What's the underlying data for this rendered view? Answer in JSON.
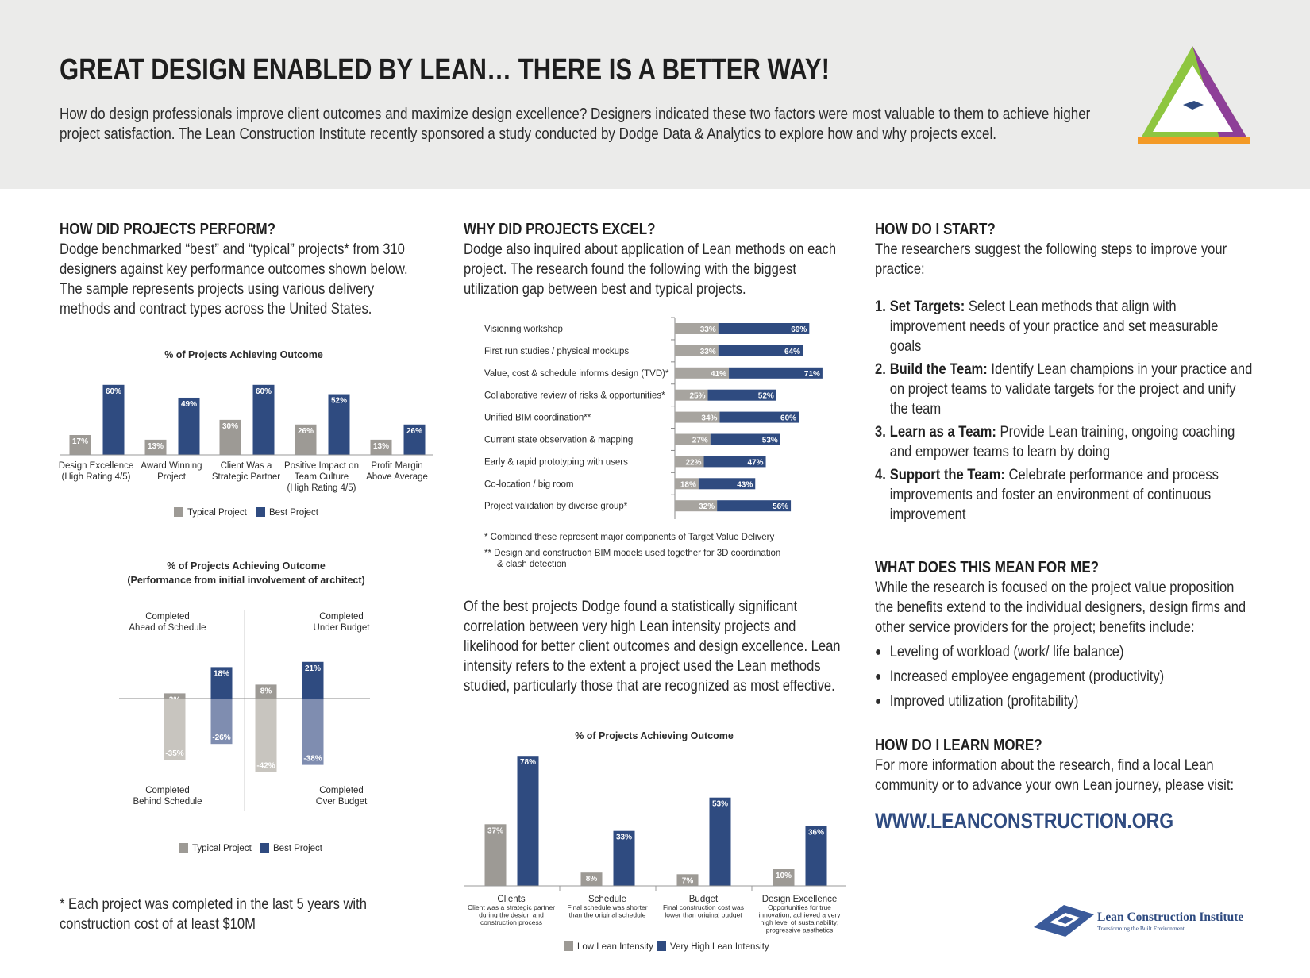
{
  "header": {
    "title": "GREAT DESIGN ENABLED BY LEAN… THERE IS A BETTER WAY!",
    "intro": "How do design professionals improve client outcomes and maximize design excellence? Designers indicated these two factors were most valuable to them to achieve higher project satisfaction. The Lean Construction Institute recently sponsored a study conducted by Dodge Data & Analytics to explore how and why projects excel."
  },
  "logo": {
    "name": "Lean Construction Institute",
    "tagline": "Transforming the Built Environment"
  },
  "perform": {
    "heading": "HOW DID PROJECTS PERFORM?",
    "body": "Dodge benchmarked “best” and “typical” projects* from 310 designers against key performance outcomes shown below. The sample represents projects using various delivery methods and contract types across the United States.",
    "footnote": "* Each project was completed in the last 5 years with construction cost of at least $10M"
  },
  "excel": {
    "heading": "WHY DID PROJECTS EXCEL?",
    "body": "Dodge also inquired about application of Lean methods on each project. The research found the following with the biggest utilization gap between best and typical projects.",
    "footnotes": [
      "*  Combined these represent major components of Target Value Delivery",
      "** Design and construction BIM models used together for 3D coordination",
      "& clash detection"
    ],
    "body2": "Of the best projects Dodge found a statistically significant correlation between very high Lean intensity projects and likelihood for better client outcomes and design excellence. Lean intensity refers to the extent a project used the Lean methods studied, particularly those that are recognized as most effective."
  },
  "start": {
    "heading": "HOW DO I START?",
    "body": "The researchers suggest the following steps to improve your practice:",
    "steps": [
      {
        "number": "1.",
        "lead": "Set Targets:",
        "text": "Select Lean methods that align with improvement needs of your practice and set measurable goals"
      },
      {
        "number": "2.",
        "lead": "Build the Team:",
        "text": "Identify Lean champions in your practice and on project teams to validate targets for the project and unify the team"
      },
      {
        "number": "3.",
        "lead": "Learn as a Team:",
        "text": "Provide Lean training, ongoing coaching and empower teams to learn by doing"
      },
      {
        "number": "4.",
        "lead": "Support the Team:",
        "text": "Celebrate performance and process improvements and foster an environment of continuous improvement"
      }
    ]
  },
  "meaning": {
    "heading": "WHAT DOES THIS MEAN FOR ME?",
    "body": "While the research is focused on the project value proposition the benefits extend to the individual designers, design firms and other service providers for the project; benefits include:",
    "bullets": [
      "Leveling of workload (work/ life balance)",
      "Increased employee engagement (productivity)",
      "Improved utilization (profitability)"
    ]
  },
  "learn": {
    "heading": "HOW DO I LEARN MORE?",
    "body": "For more information about the research, find a local Lean community or to advance your own Lean journey, please visit:",
    "url": "WWW.LEANCONSTRUCTION.ORG"
  },
  "chart_data": [
    {
      "type": "bar",
      "title": "% of Projects Achieving Outcome",
      "categories": [
        [
          "Design Excellence",
          "(High Rating 4/5)"
        ],
        [
          "Award Winning",
          "Project"
        ],
        [
          "Client Was a",
          "Strategic Partner"
        ],
        [
          "Positive Impact on",
          "Team Culture",
          "(High Rating 4/5)"
        ],
        [
          "Profit Margin",
          "Above Average"
        ]
      ],
      "series": [
        {
          "name": "Typical Project",
          "color": "#9d9a95",
          "values": [
            17,
            13,
            30,
            26,
            13
          ],
          "value_labels": [
            "17%",
            "13%",
            "30%",
            "26%",
            "13%"
          ]
        },
        {
          "name": "Best Project",
          "color": "#2f4b80",
          "values": [
            60,
            49,
            60,
            52,
            26
          ],
          "value_labels": [
            "60%",
            "49%",
            "60%",
            "52%",
            "26%"
          ]
        }
      ],
      "legend": "bottom"
    },
    {
      "type": "diverging_bar",
      "title": "% of Projects Achieving Outcome",
      "subtitle": "(Performance from initial involvement of architect)",
      "categories": [
        [
          "Completed",
          "Ahead of Schedule"
        ],
        [
          "Completed",
          "Behind Schedule"
        ],
        [
          "Completed",
          "Under Budget"
        ],
        [
          "Completed",
          "Over Budget"
        ]
      ],
      "series": [
        {
          "name": "Typical Project",
          "color": "#9d9a95",
          "negative_color": "#c8c5bf",
          "values": [
            3,
            -35,
            8,
            -42
          ],
          "value_labels": [
            "3%",
            "-35%",
            "8%",
            "-42%"
          ]
        },
        {
          "name": "Best Project",
          "color": "#2f4b80",
          "negative_color": "#7f8db0",
          "values": [
            18,
            -26,
            21,
            -38
          ],
          "value_labels": [
            "18%",
            "-26%",
            "21%",
            "-38%"
          ]
        }
      ],
      "legend": "bottom"
    },
    {
      "type": "bar",
      "orientation": "horizontal",
      "stacked": true,
      "categories": [
        "Visioning workshop",
        "First run studies / physical mockups",
        "Value, cost & schedule informs design (TVD)*",
        "Collaborative review of risks & opportunities*",
        "Unified BIM coordination**",
        "Current state observation & mapping",
        "Early & rapid prototyping with users",
        "Co-location / big room",
        "Project validation by diverse group*"
      ],
      "series": [
        {
          "color": "#a7a49f",
          "values": [
            33,
            33,
            41,
            25,
            34,
            27,
            22,
            18,
            32
          ],
          "value_labels": [
            "33%",
            "33%",
            "41%",
            "25%",
            "34%",
            "27%",
            "22%",
            "18%",
            "32%"
          ]
        },
        {
          "color": "#2f4b80",
          "values": [
            69,
            64,
            71,
            52,
            60,
            53,
            47,
            43,
            56
          ],
          "value_labels": [
            "69%",
            "64%",
            "71%",
            "52%",
            "60%",
            "53%",
            "47%",
            "43%",
            "56%"
          ]
        }
      ]
    },
    {
      "type": "bar",
      "title": "% of Projects Achieving Outcome",
      "categories": [
        "Clients",
        "Schedule",
        "Budget",
        "Design Excellence"
      ],
      "category_notes": [
        [
          "Client was a strategic partner",
          "during the design and",
          "construction process"
        ],
        [
          "Final schedule was shorter",
          "than the original schedule"
        ],
        [
          "Final construction cost was",
          "lower than original budget"
        ],
        [
          "Opportunities for true",
          "innovation; achieved a very",
          "high level of sustainability;",
          "progressive aesthetics"
        ]
      ],
      "series": [
        {
          "name": "Low Lean Intensity",
          "color": "#9d9a95",
          "values": [
            37,
            8,
            7,
            10
          ],
          "value_labels": [
            "37%",
            "8%",
            "7%",
            "10%"
          ]
        },
        {
          "name": "Very High Lean Intensity",
          "color": "#2f4b80",
          "values": [
            78,
            33,
            53,
            36
          ],
          "value_labels": [
            "78%",
            "33%",
            "53%",
            "36%"
          ]
        }
      ],
      "legend": "bottom"
    }
  ]
}
